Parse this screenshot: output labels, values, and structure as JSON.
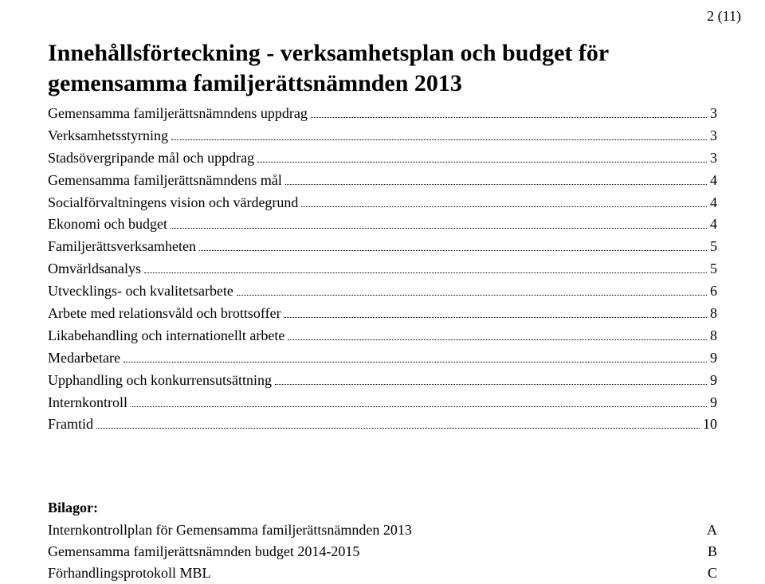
{
  "pageNumber": "2 (11)",
  "title_line1": "Innehållsförteckning - verksamhetsplan och budget för",
  "title_line2": "gemensamma familjerättsnämnden 2013",
  "toc": [
    {
      "label": "Gemensamma familjerättsnämndens uppdrag",
      "page": "3"
    },
    {
      "label": "Verksamhetsstyrning",
      "page": "3"
    },
    {
      "label": "Stadsövergripande mål och uppdrag",
      "page": "3"
    },
    {
      "label": "Gemensamma familjerättsnämndens mål",
      "page": "4"
    },
    {
      "label": "Socialförvaltningens vision och värdegrund",
      "page": "4"
    },
    {
      "label": "Ekonomi och budget",
      "page": "4"
    },
    {
      "label": "Familjerättsverksamheten",
      "page": "5"
    },
    {
      "label": "Omvärldsanalys",
      "page": "5"
    },
    {
      "label": "Utvecklings- och kvalitetsarbete",
      "page": "6"
    },
    {
      "label": "Arbete med relationsvåld och brottsoffer",
      "page": "8"
    },
    {
      "label": "Likabehandling och internationellt arbete",
      "page": "8"
    },
    {
      "label": "Medarbetare",
      "page": "9"
    },
    {
      "label": "Upphandling och konkurrensutsättning",
      "page": "9"
    },
    {
      "label": "Internkontroll",
      "page": "9"
    },
    {
      "label": "Framtid",
      "page": "10"
    }
  ],
  "attachmentsHeading": "Bilagor:",
  "attachments": [
    {
      "label": "Internkontrollplan för Gemensamma familjerättsnämnden 2013",
      "letter": "A"
    },
    {
      "label": "Gemensamma familjerättsnämnden budget 2014-2015",
      "letter": "B"
    },
    {
      "label": "Förhandlingsprotokoll MBL",
      "letter": "C"
    }
  ]
}
